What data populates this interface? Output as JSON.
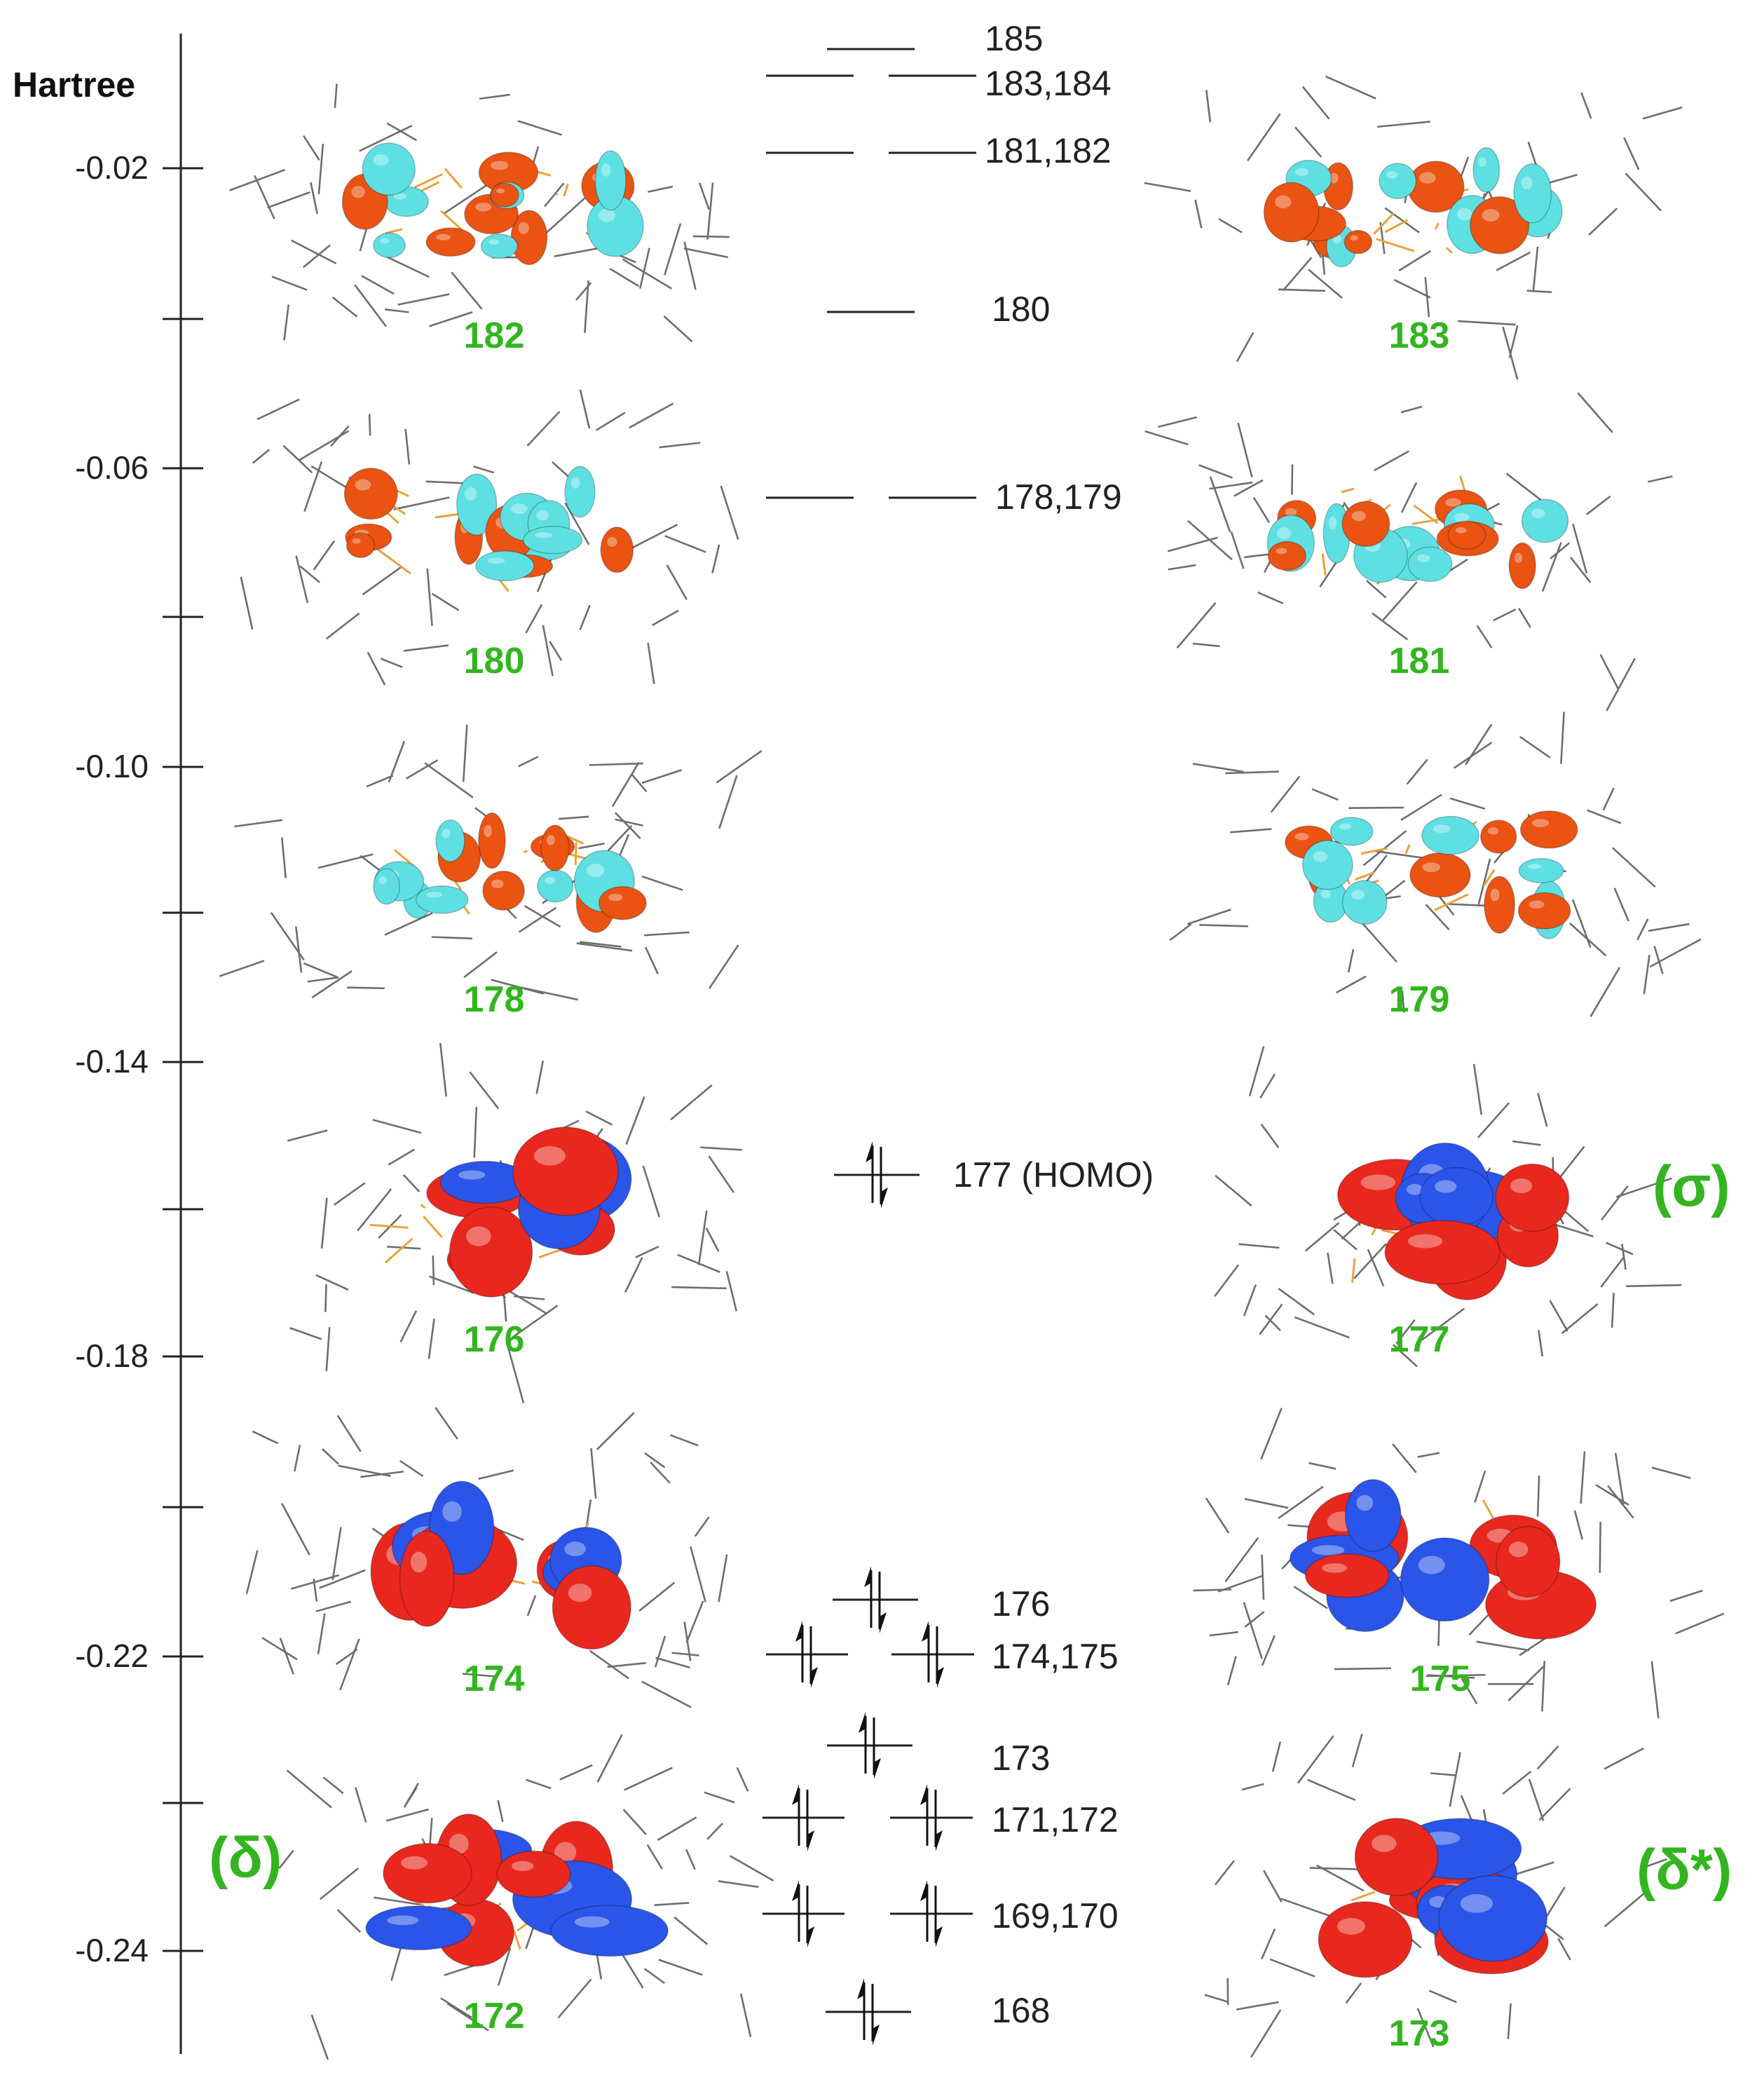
{
  "axis": {
    "unit_label": "Hartree",
    "ticks": [
      {
        "value": -0.02,
        "label": "-0.02"
      },
      {
        "value": -0.06,
        "label": "-0.06"
      },
      {
        "value": -0.1,
        "label": "-0.10"
      },
      {
        "value": -0.14,
        "label": "-0.14"
      },
      {
        "value": -0.18,
        "label": "-0.18"
      },
      {
        "value": -0.22,
        "label": "-0.22"
      },
      {
        "value": -0.24,
        "label": "-0.24"
      }
    ]
  },
  "levels": [
    {
      "id": "185",
      "label": "185",
      "pair": false,
      "occupied": false
    },
    {
      "id": "183-184",
      "label": "183,184",
      "pair": true,
      "occupied": false
    },
    {
      "id": "181-182",
      "label": "181,182",
      "pair": true,
      "occupied": false
    },
    {
      "id": "180",
      "label": "180",
      "pair": false,
      "occupied": false
    },
    {
      "id": "178-179",
      "label": "178,179",
      "pair": true,
      "occupied": false
    },
    {
      "id": "177",
      "label": "177 (HOMO)",
      "pair": false,
      "occupied": true
    },
    {
      "id": "176",
      "label": "176",
      "pair": false,
      "occupied": true
    },
    {
      "id": "174-175",
      "label": "174,175",
      "pair": true,
      "occupied": true
    },
    {
      "id": "173",
      "label": "173",
      "pair": false,
      "occupied": true
    },
    {
      "id": "171-172",
      "label": "171,172",
      "pair": true,
      "occupied": true
    },
    {
      "id": "169-170",
      "label": "169,170",
      "pair": true,
      "occupied": true
    },
    {
      "id": "168",
      "label": "168",
      "pair": false,
      "occupied": true
    }
  ],
  "orbitals": [
    {
      "label": "182",
      "style": "orange",
      "symmetry": ""
    },
    {
      "label": "183",
      "style": "orange",
      "symmetry": ""
    },
    {
      "label": "180",
      "style": "orange",
      "symmetry": ""
    },
    {
      "label": "181",
      "style": "orange",
      "symmetry": ""
    },
    {
      "label": "178",
      "style": "orange",
      "symmetry": ""
    },
    {
      "label": "179",
      "style": "orange",
      "symmetry": ""
    },
    {
      "label": "176",
      "style": "red",
      "symmetry": ""
    },
    {
      "label": "177",
      "style": "red",
      "symmetry": "(σ)"
    },
    {
      "label": "174",
      "style": "red",
      "symmetry": ""
    },
    {
      "label": "175",
      "style": "red",
      "symmetry": ""
    },
    {
      "label": "172",
      "style": "red",
      "symmetry": "(δ)"
    },
    {
      "label": "173",
      "style": "red",
      "symmetry": "(δ*)"
    }
  ],
  "colors": {
    "label_green": "#33b51f",
    "orange_lobe": "#ea5312",
    "cyan_lobe": "#5ee0e3",
    "red_lobe": "#e8281e",
    "blue_lobe": "#2a55e8",
    "stick": "#6e6e6e",
    "metal_bond": "#e8a33a"
  }
}
